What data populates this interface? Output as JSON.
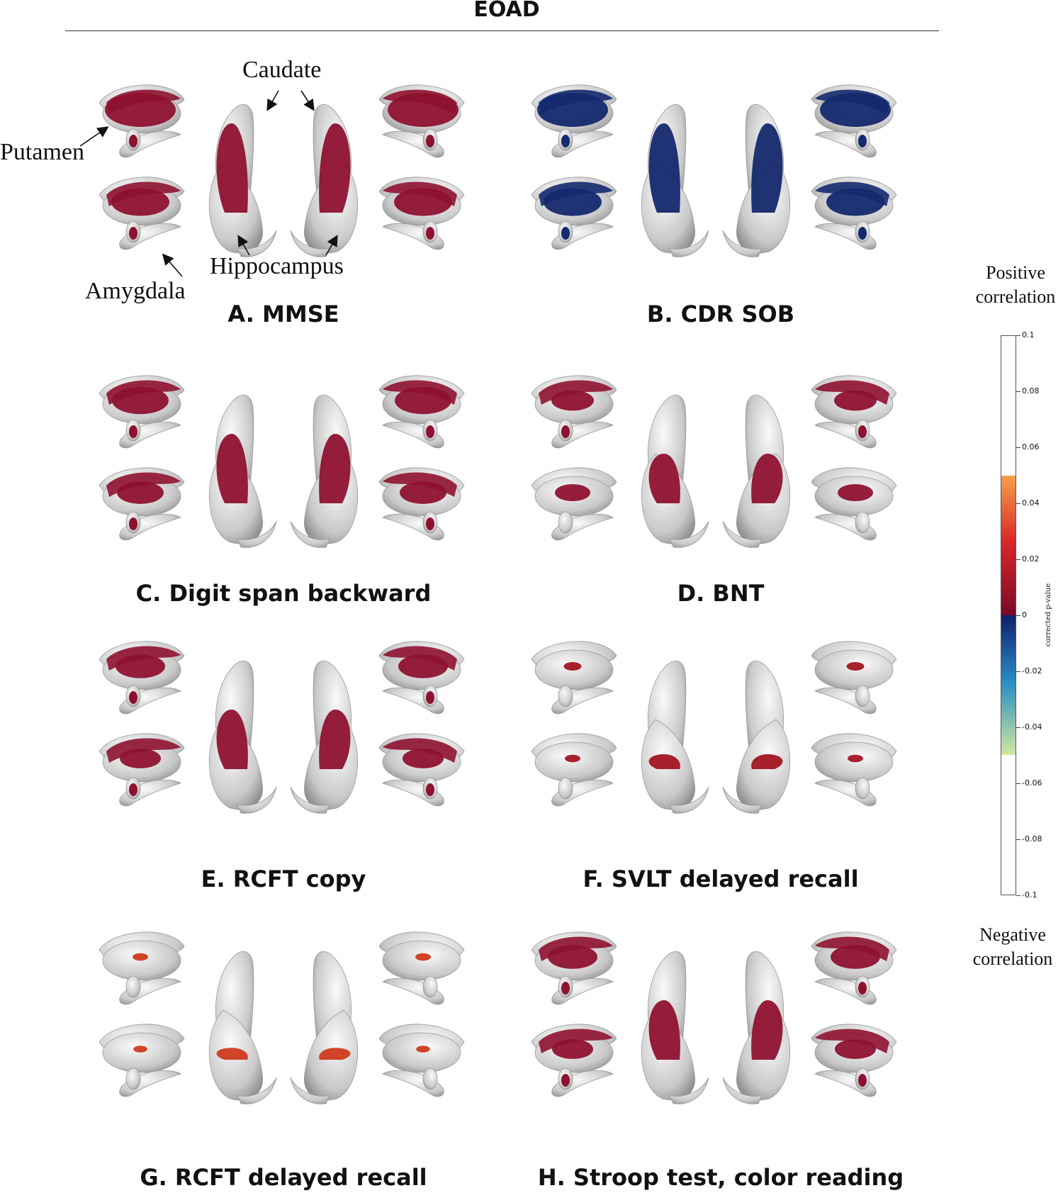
{
  "figure": {
    "title": "EOAD"
  },
  "annotations": {
    "caudate": "Caudate",
    "putamen": "Putamen",
    "hippocampus": "Hippocampus",
    "amygdala": "Amygdala"
  },
  "panels": [
    {
      "caption": "A. MMSE",
      "fill": "#8e1230",
      "coverage": 0.9
    },
    {
      "caption": "B. CDR SOB",
      "fill": "#14296e",
      "coverage": 0.9
    },
    {
      "caption": "C. Digit span backward",
      "fill": "#8e1230",
      "coverage": 0.7
    },
    {
      "caption": "D. BNT",
      "fill": "#8e1230",
      "coverage": 0.5
    },
    {
      "caption": "E. RCFT copy",
      "fill": "#8e1230",
      "coverage": 0.6
    },
    {
      "caption": "F. SVLT delayed recall",
      "fill": "#a31622",
      "coverage": 0.15
    },
    {
      "caption": "G. RCFT delayed recall",
      "fill": "#cf3a1e",
      "coverage": 0.12
    },
    {
      "caption": "H. Stroop test, color reading",
      "fill": "#8e1230",
      "coverage": 0.6
    }
  ],
  "colorbar": {
    "positive_label": "Positive correlation",
    "negative_label": "Negative correlation",
    "axis_label": "corrected p-value",
    "ticks": [
      "0.1",
      "0.08",
      "0.06",
      "0.04",
      "0.02",
      "0",
      "-0.02",
      "-0.04",
      "-0.06",
      "-0.08",
      "-0.1"
    ],
    "colors": {
      "positive_low": "#7a0a26",
      "positive_mid": "#d8262a",
      "positive_high": "#f6a04a",
      "negative_low": "#0e1f6b",
      "negative_mid": "#2b8ec4",
      "negative_high": "#cfe8a0"
    }
  }
}
